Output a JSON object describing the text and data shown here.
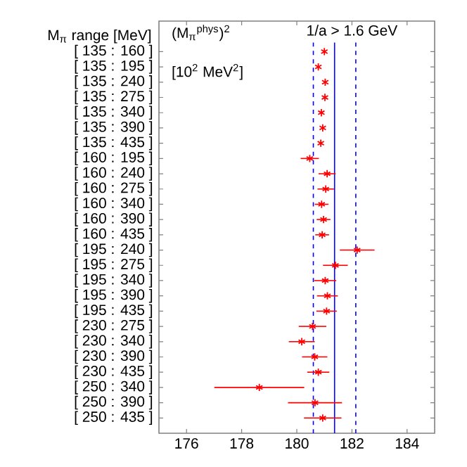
{
  "chart_data": {
    "type": "scatter",
    "orientation": "horizontal",
    "ylabel": "M$_{π}$ range [MeV]",
    "annotations": [
      "(M$_{π}$$^{phys}$)$^{2}$",
      "[10$^{2}$ MeV$^{2}$]",
      "1/a > 1.6 GeV"
    ],
    "categories": [
      "[ 135 : 160 ]",
      "[ 135 : 195 ]",
      "[ 135 : 240 ]",
      "[ 135 : 275 ]",
      "[ 135 : 340 ]",
      "[ 135 : 390 ]",
      "[ 135 : 435 ]",
      "[ 160 : 195 ]",
      "[ 160 : 240 ]",
      "[ 160 : 275 ]",
      "[ 160 : 340 ]",
      "[ 160 : 390 ]",
      "[ 160 : 435 ]",
      "[ 195 : 240 ]",
      "[ 195 : 275 ]",
      "[ 195 : 340 ]",
      "[ 195 : 390 ]",
      "[ 195 : 435 ]",
      "[ 230 : 275 ]",
      "[ 230 : 340 ]",
      "[ 230 : 390 ]",
      "[ 230 : 435 ]",
      "[ 250 : 340 ]",
      "[ 250 : 390 ]",
      "[ 250 : 435 ]"
    ],
    "series": [
      {
        "color": "#ff0000",
        "values": [
          181.0,
          180.78,
          181.03,
          181.02,
          180.89,
          180.94,
          180.87,
          180.47,
          181.1,
          181.05,
          180.9,
          180.97,
          180.92,
          182.19,
          181.4,
          181.03,
          181.11,
          181.08,
          180.57,
          180.18,
          180.65,
          180.78,
          178.64,
          180.66,
          180.94
        ],
        "errors": [
          null,
          null,
          null,
          null,
          null,
          null,
          null,
          0.33,
          0.31,
          0.3,
          0.25,
          0.25,
          0.25,
          0.63,
          0.45,
          0.4,
          0.38,
          0.37,
          0.5,
          0.47,
          0.46,
          0.4,
          1.63,
          0.98,
          0.68
        ]
      }
    ],
    "marker": "cross",
    "xlim": [
      175,
      185
    ],
    "xticks": [
      176,
      178,
      180,
      182,
      184
    ],
    "ref_lines": [
      {
        "axis": "x",
        "value": 181.37,
        "color": "#0000ff",
        "line_style": "solid"
      },
      {
        "axis": "x",
        "value": 180.6,
        "color": "#0000ff",
        "line_style": "dashed"
      },
      {
        "axis": "x",
        "value": 182.14,
        "color": "#0000ff",
        "line_style": "dashed"
      }
    ]
  }
}
